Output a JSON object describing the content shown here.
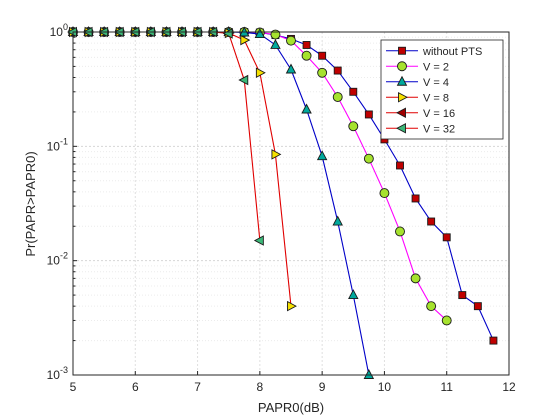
{
  "chart_data": {
    "type": "line",
    "xlabel": "PAPR0(dB)",
    "ylabel": "Pr(PAPR>PAPR0)",
    "xlim": [
      5,
      12
    ],
    "ylim": [
      0.001,
      1
    ],
    "yscale": "log",
    "grid": true,
    "legend_position": "top-right",
    "x_ticks": [
      "5",
      "6",
      "7",
      "8",
      "9",
      "10",
      "11",
      "12"
    ],
    "y_ticks": [
      {
        "value": 1,
        "base": "10",
        "exp": "0"
      },
      {
        "value": 0.1,
        "base": "10",
        "exp": "-1"
      },
      {
        "value": 0.01,
        "base": "10",
        "exp": "-2"
      },
      {
        "value": 0.001,
        "base": "10",
        "exp": "-3"
      }
    ],
    "series": [
      {
        "name": "without PTS",
        "color": "#0000c8",
        "marker": "square",
        "marker_color": "#c00000",
        "x": [
          5,
          5.25,
          5.5,
          5.75,
          6,
          6.25,
          6.5,
          6.75,
          7,
          7.25,
          7.5,
          7.75,
          8,
          8.25,
          8.5,
          8.75,
          9,
          9.25,
          9.5,
          9.75,
          10,
          10.25,
          10.5,
          10.75,
          11,
          11.25,
          11.5,
          11.75
        ],
        "y": [
          1,
          1,
          1,
          1,
          1,
          1,
          1,
          1,
          1,
          1,
          1,
          1,
          0.99,
          0.94,
          0.87,
          0.77,
          0.62,
          0.46,
          0.3,
          0.19,
          0.115,
          0.068,
          0.035,
          0.022,
          0.016,
          0.005,
          0.004,
          0.002
        ]
      },
      {
        "name": "V = 2",
        "color": "#ff00ff",
        "marker": "circle",
        "marker_color": "#a6e22e",
        "x": [
          5,
          5.25,
          5.5,
          5.75,
          6,
          6.25,
          6.5,
          6.75,
          7,
          7.25,
          7.5,
          7.75,
          8,
          8.25,
          8.5,
          8.75,
          9,
          9.25,
          9.5,
          9.75,
          10,
          10.25,
          10.5,
          10.75,
          11
        ],
        "y": [
          1,
          1,
          1,
          1,
          1,
          1,
          1,
          1,
          1,
          1,
          1,
          1,
          0.99,
          0.95,
          0.84,
          0.62,
          0.44,
          0.27,
          0.15,
          0.078,
          0.039,
          0.018,
          0.007,
          0.004,
          0.003
        ]
      },
      {
        "name": "V = 4",
        "color": "#0000c8",
        "marker": "triangle-up",
        "marker_color": "#00a99d",
        "x": [
          5,
          5.25,
          5.5,
          5.75,
          6,
          6.25,
          6.5,
          6.75,
          7,
          7.25,
          7.5,
          7.75,
          8,
          8.25,
          8.5,
          8.75,
          9,
          9.25,
          9.5,
          9.75
        ],
        "y": [
          1,
          1,
          1,
          1,
          1,
          1,
          1,
          1,
          1,
          1,
          1,
          0.99,
          0.96,
          0.77,
          0.47,
          0.21,
          0.082,
          0.022,
          0.005,
          0.001
        ]
      },
      {
        "name": "V = 8",
        "color": "#e00000",
        "marker": "triangle-right",
        "marker_color": "#f5e000",
        "x": [
          5,
          5.25,
          5.5,
          5.75,
          6,
          6.25,
          6.5,
          6.75,
          7,
          7.25,
          7.5,
          7.75,
          8,
          8.25,
          8.5
        ],
        "y": [
          1,
          1,
          1,
          1,
          1,
          1,
          1,
          1,
          1,
          1,
          0.98,
          0.85,
          0.44,
          0.085,
          0.004
        ]
      },
      {
        "name": "V = 16",
        "color": "#e00000",
        "marker": "triangle-left",
        "marker_color": "#a00000",
        "x": [],
        "y": []
      },
      {
        "name": "V = 32",
        "color": "#e00000",
        "marker": "triangle-left",
        "marker_color": "#3cb878",
        "x": [
          5,
          5.25,
          5.5,
          5.75,
          6,
          6.25,
          6.5,
          6.75,
          7,
          7.25,
          7.5,
          7.75,
          8
        ],
        "y": [
          1,
          1,
          1,
          1,
          1,
          1,
          1,
          1,
          1,
          1,
          0.97,
          0.38,
          0.015
        ]
      }
    ]
  }
}
